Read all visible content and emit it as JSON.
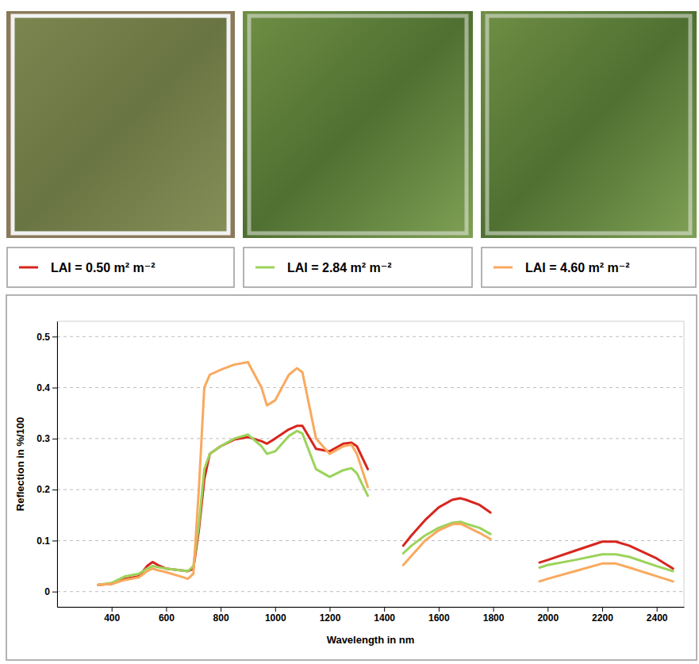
{
  "chart_data": {
    "type": "line",
    "x_label": "Wavelength in nm",
    "y_label": "Reflection in %/100",
    "x": [
      350,
      400,
      450,
      500,
      530,
      550,
      570,
      600,
      650,
      680,
      700,
      720,
      740,
      760,
      800,
      850,
      900,
      950,
      970,
      1000,
      1050,
      1080,
      1100,
      1150,
      1200,
      1250,
      1280,
      1300,
      1340,
      1400,
      1470,
      1500,
      1550,
      1600,
      1650,
      1680,
      1700,
      1750,
      1790,
      1880,
      1970,
      2000,
      2100,
      2200,
      2250,
      2300,
      2400,
      2460
    ],
    "series": [
      {
        "name": "LAI = 0.50 m² m⁻²",
        "color": "#d7261e",
        "values": [
          0.013,
          0.015,
          0.025,
          0.03,
          0.05,
          0.058,
          0.052,
          0.045,
          0.042,
          0.04,
          0.045,
          0.12,
          0.22,
          0.27,
          0.285,
          0.298,
          0.303,
          0.295,
          0.29,
          0.3,
          0.318,
          0.325,
          0.325,
          0.28,
          0.275,
          0.29,
          0.292,
          0.285,
          0.24,
          null,
          0.09,
          0.11,
          0.14,
          0.165,
          0.18,
          0.183,
          0.18,
          0.17,
          0.155,
          null,
          0.057,
          0.062,
          0.08,
          0.098,
          0.098,
          0.09,
          0.065,
          0.045
        ]
      },
      {
        "name": "LAI = 2.84 m² m⁻²",
        "color": "#9bd35a",
        "values": [
          0.013,
          0.017,
          0.03,
          0.035,
          0.045,
          0.05,
          0.048,
          0.045,
          0.042,
          0.04,
          0.05,
          0.13,
          0.24,
          0.27,
          0.285,
          0.3,
          0.308,
          0.285,
          0.27,
          0.275,
          0.305,
          0.315,
          0.31,
          0.24,
          0.225,
          0.238,
          0.242,
          0.232,
          0.188,
          null,
          0.075,
          0.09,
          0.11,
          0.125,
          0.135,
          0.137,
          0.133,
          0.125,
          0.113,
          null,
          0.047,
          0.052,
          0.062,
          0.073,
          0.073,
          0.068,
          0.05,
          0.04
        ]
      },
      {
        "name": "LAI = 4.60 m² m⁻²",
        "color": "#f9a95e",
        "values": [
          0.013,
          0.015,
          0.023,
          0.028,
          0.04,
          0.045,
          0.042,
          0.038,
          0.03,
          0.025,
          0.035,
          0.2,
          0.4,
          0.425,
          0.435,
          0.445,
          0.45,
          0.4,
          0.365,
          0.375,
          0.425,
          0.438,
          0.43,
          0.3,
          0.27,
          0.285,
          0.288,
          0.27,
          0.205,
          null,
          0.052,
          0.07,
          0.1,
          0.12,
          0.132,
          0.133,
          0.128,
          0.115,
          0.103,
          null,
          0.02,
          0.025,
          0.04,
          0.055,
          0.055,
          0.047,
          0.03,
          0.02
        ]
      }
    ],
    "xlim": [
      200,
      2500
    ],
    "ylim": [
      -0.03,
      0.53
    ],
    "xticks": [
      400,
      600,
      800,
      1000,
      1200,
      1400,
      1600,
      1800,
      2000,
      2200,
      2400
    ],
    "yticks": [
      0,
      0.1,
      0.2,
      0.3,
      0.4,
      0.5
    ],
    "grid": true,
    "legend": "top"
  }
}
